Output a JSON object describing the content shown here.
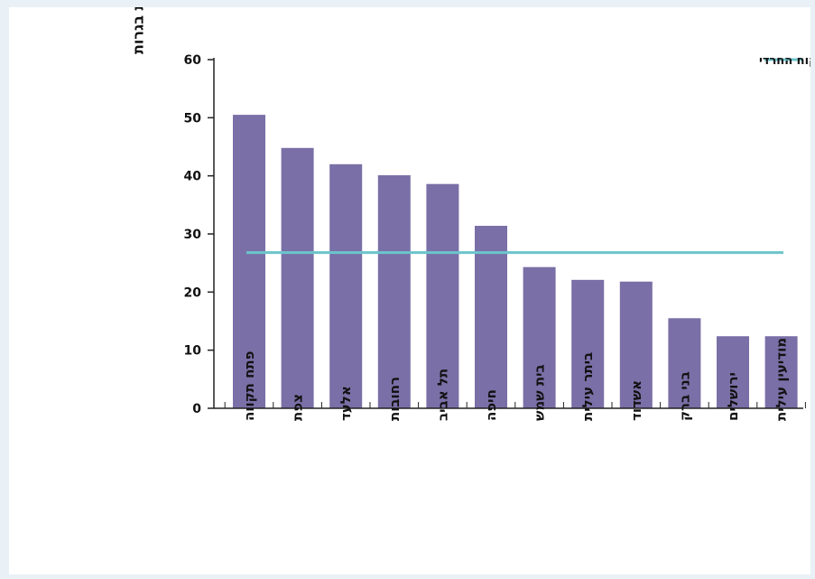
{
  "chart_data": {
    "type": "bar",
    "ylabel": "% הניגשים לבחינות בגרות",
    "ylim": [
      0,
      60
    ],
    "yticks": [
      0,
      10,
      20,
      30,
      40,
      50,
      60
    ],
    "categories": [
      "פתח תקווה",
      "צפת",
      "אלעד",
      "רחובות",
      "תל אביב",
      "חיפה",
      "בית שמש",
      "ביתר עילית",
      "אשדוד",
      "בני ברק",
      "ירושלים",
      "מודיעין עילית"
    ],
    "values": [
      50.5,
      44.8,
      42.0,
      40.1,
      38.6,
      31.4,
      24.3,
      22.1,
      21.8,
      15.5,
      12.4,
      12.4
    ],
    "bar_color": "#7a6fa6",
    "reference_line": {
      "name": "אחוז הניגשים לבחינות בגרות בפיקוח החרדי",
      "value": 26.8,
      "color": "#6cc4cc"
    },
    "grid": false,
    "legend_position": "top-right"
  }
}
